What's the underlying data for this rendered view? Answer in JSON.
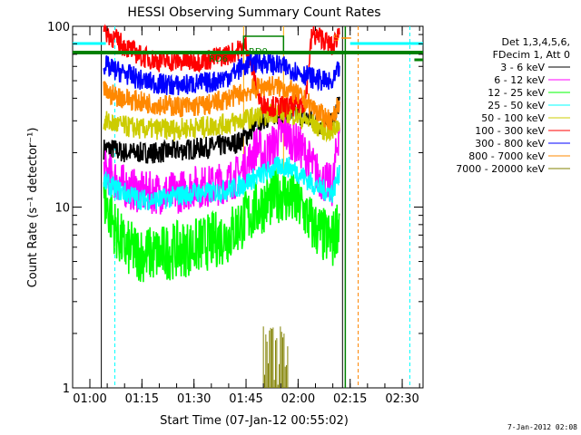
{
  "chart_data": {
    "type": "line",
    "title": "HESSI Observing Summary Count Rates",
    "xlabel": "Start Time (07-Jan-12 00:55:02)",
    "ylabel": "Count Rate (s⁻¹ detector⁻¹)",
    "y_scale": "log",
    "ylim": [
      1,
      100
    ],
    "x_range_minutes": [
      55.03,
      156
    ],
    "x_ticks": [
      {
        "min": 60,
        "label": "01:00"
      },
      {
        "min": 75,
        "label": "01:15"
      },
      {
        "min": 90,
        "label": "01:30"
      },
      {
        "min": 105,
        "label": "01:45"
      },
      {
        "min": 120,
        "label": "02:00"
      },
      {
        "min": 135,
        "label": "02:15"
      },
      {
        "min": 150,
        "label": "02:30"
      }
    ],
    "y_ticks": [
      {
        "v": 1,
        "label": "1"
      },
      {
        "v": 10,
        "label": "10"
      },
      {
        "v": 100,
        "label": "100"
      }
    ],
    "legend": {
      "position": "top-right",
      "header": [
        "Det 1,3,4,5,6,",
        "FDecim 1, Att 0"
      ]
    },
    "series": [
      {
        "name": "3 - 6 keV",
        "color": "#000000",
        "points": [
          [
            64,
            21
          ],
          [
            66,
            21
          ],
          [
            70,
            20
          ],
          [
            75,
            20
          ],
          [
            80,
            20
          ],
          [
            85,
            20.5
          ],
          [
            90,
            21
          ],
          [
            95,
            21.5
          ],
          [
            100,
            22
          ],
          [
            103,
            23
          ],
          [
            106,
            26
          ],
          [
            109,
            30
          ],
          [
            112,
            32
          ],
          [
            115,
            33
          ],
          [
            118,
            33
          ],
          [
            121,
            32
          ],
          [
            124,
            30
          ],
          [
            127,
            28
          ],
          [
            130,
            29
          ],
          [
            132,
            40
          ]
        ]
      },
      {
        "name": "6 - 12 keV",
        "color": "#ff00ff",
        "points": [
          [
            64,
            16
          ],
          [
            66,
            15
          ],
          [
            70,
            13
          ],
          [
            75,
            12
          ],
          [
            80,
            12
          ],
          [
            85,
            12
          ],
          [
            90,
            13
          ],
          [
            95,
            13
          ],
          [
            100,
            14
          ],
          [
            103,
            15
          ],
          [
            106,
            18
          ],
          [
            108,
            22
          ],
          [
            110,
            19
          ],
          [
            112,
            21
          ],
          [
            114,
            24
          ],
          [
            116,
            26
          ],
          [
            118,
            24
          ],
          [
            121,
            21
          ],
          [
            124,
            17
          ],
          [
            127,
            14
          ],
          [
            130,
            13
          ],
          [
            132,
            30
          ]
        ]
      },
      {
        "name": "12 - 25 keV",
        "color": "#00ff00",
        "points": [
          [
            64,
            11
          ],
          [
            66,
            9
          ],
          [
            68,
            7
          ],
          [
            70,
            6
          ],
          [
            75,
            5.5
          ],
          [
            80,
            5.5
          ],
          [
            85,
            5.8
          ],
          [
            90,
            6
          ],
          [
            95,
            6.5
          ],
          [
            100,
            7
          ],
          [
            103,
            8
          ],
          [
            106,
            9
          ],
          [
            109,
            10
          ],
          [
            112,
            11
          ],
          [
            115,
            12
          ],
          [
            118,
            11
          ],
          [
            121,
            10
          ],
          [
            124,
            8
          ],
          [
            127,
            7
          ],
          [
            130,
            6.5
          ],
          [
            132,
            9
          ]
        ]
      },
      {
        "name": "25 - 50 keV",
        "color": "#00ffff",
        "points": [
          [
            64,
            14
          ],
          [
            66,
            13
          ],
          [
            70,
            12
          ],
          [
            75,
            11
          ],
          [
            80,
            11
          ],
          [
            85,
            11.5
          ],
          [
            90,
            12
          ],
          [
            95,
            12
          ],
          [
            100,
            12.5
          ],
          [
            103,
            13
          ],
          [
            106,
            14
          ],
          [
            109,
            15
          ],
          [
            112,
            16
          ],
          [
            115,
            17
          ],
          [
            118,
            16.5
          ],
          [
            121,
            15
          ],
          [
            124,
            13.5
          ],
          [
            127,
            12.5
          ],
          [
            130,
            12
          ],
          [
            132,
            16
          ]
        ]
      },
      {
        "name": "50 - 100 keV",
        "color": "#cccc00",
        "points": [
          [
            64,
            30
          ],
          [
            66,
            29
          ],
          [
            70,
            28
          ],
          [
            75,
            27
          ],
          [
            80,
            27
          ],
          [
            85,
            27
          ],
          [
            90,
            27.5
          ],
          [
            95,
            28
          ],
          [
            100,
            29
          ],
          [
            103,
            30
          ],
          [
            106,
            31
          ],
          [
            109,
            32
          ],
          [
            112,
            33
          ],
          [
            115,
            34
          ],
          [
            118,
            33
          ],
          [
            121,
            31
          ],
          [
            124,
            29
          ],
          [
            127,
            27
          ],
          [
            130,
            26
          ],
          [
            132,
            30
          ]
        ]
      },
      {
        "name": "100 - 300 keV",
        "color": "#ff0000",
        "points": [
          [
            64,
            96
          ],
          [
            66,
            88
          ],
          [
            70,
            78
          ],
          [
            75,
            68
          ],
          [
            80,
            64
          ],
          [
            85,
            64
          ],
          [
            90,
            64
          ],
          [
            95,
            66
          ],
          [
            100,
            70
          ],
          [
            103,
            74
          ],
          [
            105,
            80
          ],
          [
            109,
            38
          ],
          [
            113,
            36
          ],
          [
            118,
            36
          ],
          [
            122,
            38
          ],
          [
            124,
            90
          ],
          [
            127,
            86
          ],
          [
            130,
            76
          ],
          [
            132,
            96
          ]
        ]
      },
      {
        "name": "300 - 800 keV",
        "color": "#0000ff",
        "points": [
          [
            64,
            62
          ],
          [
            66,
            58
          ],
          [
            70,
            55
          ],
          [
            75,
            50
          ],
          [
            80,
            48
          ],
          [
            85,
            47
          ],
          [
            90,
            48
          ],
          [
            95,
            49
          ],
          [
            100,
            53
          ],
          [
            103,
            58
          ],
          [
            106,
            62
          ],
          [
            109,
            64
          ],
          [
            112,
            62
          ],
          [
            115,
            60
          ],
          [
            118,
            58
          ],
          [
            121,
            55
          ],
          [
            124,
            52
          ],
          [
            127,
            50
          ],
          [
            130,
            48
          ],
          [
            132,
            60
          ]
        ]
      },
      {
        "name": "800 - 7000 keV",
        "color": "#ff8800",
        "points": [
          [
            64,
            44
          ],
          [
            66,
            42
          ],
          [
            70,
            40
          ],
          [
            75,
            38
          ],
          [
            80,
            37
          ],
          [
            85,
            36
          ],
          [
            90,
            36
          ],
          [
            95,
            37
          ],
          [
            100,
            40
          ],
          [
            103,
            42
          ],
          [
            106,
            44
          ],
          [
            109,
            46
          ],
          [
            112,
            47
          ],
          [
            115,
            46
          ],
          [
            118,
            44
          ],
          [
            121,
            40
          ],
          [
            124,
            36
          ],
          [
            127,
            32
          ],
          [
            130,
            30
          ],
          [
            132,
            40
          ]
        ]
      },
      {
        "name": "7000 - 20000 keV",
        "color": "#808000",
        "points": []
      }
    ],
    "annotations": {
      "rd_labels": [
        {
          "text": "RD6"
        },
        {
          "text": "RD0"
        }
      ],
      "s_marker": {
        "text": "S"
      }
    },
    "timestamp": "7-Jan-2012 02:08"
  }
}
